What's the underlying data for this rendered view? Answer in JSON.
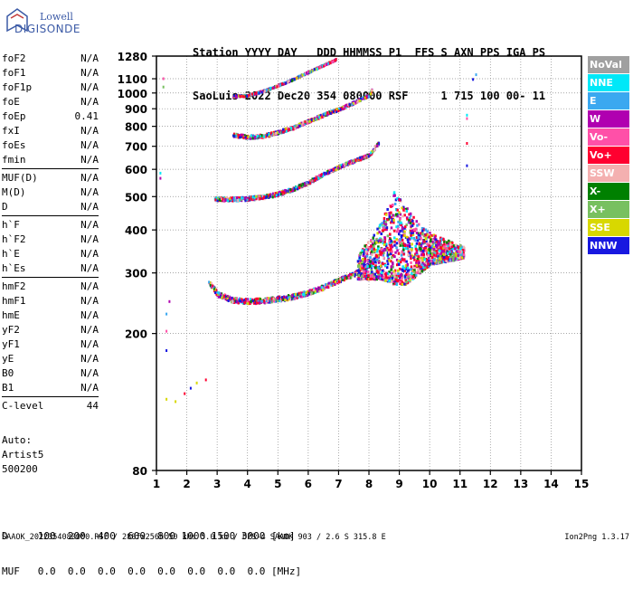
{
  "logo": {
    "top": "Lowell",
    "bottom": "DIGISONDE"
  },
  "header": {
    "line1": "Station YYYY DAY   DDD HHMMSS P1  FFS S AXN PPS IGA PS",
    "line2": "SaoLuis 2022 Dec20 354 080000 RSF     1 715 100 00- 11"
  },
  "parameters": [
    {
      "group": 1,
      "label": "foF2",
      "value": "N/A"
    },
    {
      "group": 1,
      "label": "foF1",
      "value": "N/A"
    },
    {
      "group": 1,
      "label": "foF1p",
      "value": "N/A"
    },
    {
      "group": 1,
      "label": "foE",
      "value": "N/A"
    },
    {
      "group": 1,
      "label": "foEp",
      "value": "0.41"
    },
    {
      "group": 1,
      "label": "fxI",
      "value": "N/A"
    },
    {
      "group": 1,
      "label": "foEs",
      "value": "N/A"
    },
    {
      "group": 1,
      "label": "fmin",
      "value": "N/A"
    },
    {
      "group": 2,
      "label": "MUF(D)",
      "value": "N/A"
    },
    {
      "group": 2,
      "label": "M(D)",
      "value": "N/A"
    },
    {
      "group": 2,
      "label": "D",
      "value": "N/A"
    },
    {
      "group": 3,
      "label": "h`F",
      "value": "N/A"
    },
    {
      "group": 3,
      "label": "h`F2",
      "value": "N/A"
    },
    {
      "group": 3,
      "label": "h`E",
      "value": "N/A"
    },
    {
      "group": 3,
      "label": "h`Es",
      "value": "N/A"
    },
    {
      "group": 4,
      "label": "hmF2",
      "value": "N/A"
    },
    {
      "group": 4,
      "label": "hmF1",
      "value": "N/A"
    },
    {
      "group": 4,
      "label": "hmE",
      "value": "N/A"
    },
    {
      "group": 4,
      "label": "yF2",
      "value": "N/A"
    },
    {
      "group": 4,
      "label": "yF1",
      "value": "N/A"
    },
    {
      "group": 4,
      "label": "yE",
      "value": "N/A"
    },
    {
      "group": 4,
      "label": "B0",
      "value": "N/A"
    },
    {
      "group": 4,
      "label": "B1",
      "value": "N/A"
    },
    {
      "group": 5,
      "label": "C-level",
      "value": "44"
    }
  ],
  "autoscaling": {
    "line1": "Auto:",
    "line2": "Artist5",
    "line3": "500200"
  },
  "legend": [
    {
      "label": "NoVal",
      "color": "#a0a0a0"
    },
    {
      "label": "NNE",
      "color": "#00e8f8"
    },
    {
      "label": "E",
      "color": "#3aa8f0"
    },
    {
      "label": "W",
      "color": "#b000b0"
    },
    {
      "label": "Vo-",
      "color": "#ff50a8"
    },
    {
      "label": "Vo+",
      "color": "#ff0030"
    },
    {
      "label": "SSW",
      "color": "#f4b0b0"
    },
    {
      "label": "X-",
      "color": "#008000"
    },
    {
      "label": "X+",
      "color": "#78c060"
    },
    {
      "label": "SSE",
      "color": "#d8d800"
    },
    {
      "label": "NNW",
      "color": "#1818e0"
    }
  ],
  "chart_data": {
    "type": "scatter",
    "title": "",
    "xlabel": "",
    "ylabel": "",
    "x_ticks": [
      1,
      2,
      3,
      4,
      5,
      6,
      7,
      8,
      9,
      10,
      11,
      12,
      13,
      14,
      15
    ],
    "y_ticks": [
      80,
      200,
      300,
      400,
      500,
      600,
      700,
      800,
      900,
      1000,
      1100,
      1280
    ],
    "xlim": [
      1,
      15
    ],
    "ylim": [
      80,
      1280
    ],
    "y_scale": "log",
    "grid": true,
    "series": [
      {
        "type": "points",
        "x": [
          1.3,
          1.6,
          1.9,
          2.1,
          2.3,
          2.6
        ],
        "y": [
          130,
          128,
          135,
          140,
          145,
          148
        ]
      },
      {
        "type": "points",
        "x": [
          1.3,
          1.3,
          1.3,
          1.4
        ],
        "y": [
          180,
          205,
          230,
          250
        ]
      },
      {
        "type": "band",
        "x": [
          2.7,
          3.0,
          3.5,
          4.0,
          4.5,
          5.0,
          5.5,
          6.0,
          6.5,
          7.0,
          7.5,
          8.0,
          8.3
        ],
        "y": [
          285,
          262,
          252,
          250,
          251,
          254,
          258,
          265,
          275,
          288,
          300,
          320,
          340
        ],
        "spread": 8
      },
      {
        "type": "cluster",
        "x": [
          7.6,
          8.0,
          8.4,
          8.8,
          9.2,
          9.6,
          10.0,
          10.4,
          10.8,
          11.1
        ],
        "ymin": [
          290,
          290,
          290,
          280,
          280,
          300,
          320,
          325,
          330,
          335
        ],
        "ymax": [
          340,
          380,
          430,
          520,
          470,
          420,
          395,
          380,
          370,
          360
        ]
      },
      {
        "type": "band",
        "x": [
          2.9,
          3.5,
          4.0,
          4.5,
          5.0,
          5.5,
          6.0,
          6.5,
          7.0,
          7.5,
          8.0,
          8.3
        ],
        "y": [
          495,
          495,
          497,
          502,
          513,
          530,
          555,
          585,
          615,
          640,
          665,
          720
        ],
        "spread": 12
      },
      {
        "type": "band",
        "x": [
          3.5,
          4.0,
          4.5,
          5.0,
          5.5,
          6.0,
          6.5,
          7.0,
          7.5,
          8.0,
          8.1
        ],
        "y": [
          760,
          750,
          755,
          775,
          800,
          835,
          870,
          905,
          945,
          995,
          1040
        ],
        "spread": 16
      },
      {
        "type": "band",
        "x": [
          3.5,
          4.0,
          4.5,
          5.0,
          5.5,
          6.0,
          6.5,
          6.9
        ],
        "y": [
          985,
          990,
          1020,
          1060,
          1105,
          1160,
          1215,
          1260
        ],
        "spread": 10
      },
      {
        "type": "points",
        "x": [
          1.1,
          1.1,
          1.2,
          1.2
        ],
        "y": [
          570,
          590,
          1050,
          1110
        ]
      },
      {
        "type": "points",
        "x": [
          11.2,
          11.2,
          11.2,
          11.2,
          11.4,
          11.5
        ],
        "y": [
          620,
          720,
          850,
          870,
          1105,
          1140
        ]
      }
    ]
  },
  "footer": {
    "d_row": "D     100  200  400  600  800 1000 1500 3000 [km]",
    "muf_row": "MUF   0.0  0.0  0.0  0.0  0.0  0.0  0.0  0.0 [MHz]",
    "file_line": "SAAOK_2022354080000.RSF / 280fx256h 50 kHs 5.0 km / DPS-4 SAAOK 903 / 2.6 S 315.8 E",
    "version": "Ion2Png 1.3.17"
  }
}
